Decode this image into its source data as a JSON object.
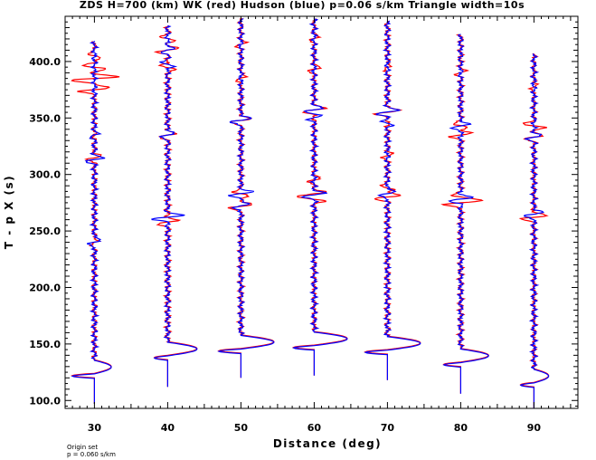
{
  "chart_data": {
    "type": "line",
    "title": "ZDS H=700 (km) WK (red) Hudson (blue) p=0.06 s/km Triangle width=10s",
    "xlabel": "Distance (deg)",
    "ylabel": "T - p X (s)",
    "xlim": [
      26,
      96
    ],
    "ylim": [
      93,
      440
    ],
    "xticks": [
      {
        "v": 30,
        "label": "30"
      },
      {
        "v": 40,
        "label": "40"
      },
      {
        "v": 50,
        "label": "50"
      },
      {
        "v": 60,
        "label": "60"
      },
      {
        "v": 70,
        "label": "70"
      },
      {
        "v": 80,
        "label": "80"
      },
      {
        "v": 90,
        "label": "90"
      }
    ],
    "yticks": [
      {
        "v": 100,
        "label": "100.0"
      },
      {
        "v": 150,
        "label": "150.0"
      },
      {
        "v": 200,
        "label": "200.0"
      },
      {
        "v": 250,
        "label": "250.0"
      },
      {
        "v": 300,
        "label": "300.0"
      },
      {
        "v": 350,
        "label": "350.0"
      },
      {
        "v": 400,
        "label": "400.0"
      }
    ],
    "series": [
      {
        "name": "WK (red)",
        "color": "#ff0000"
      },
      {
        "name": "Hudson (blue)",
        "color": "#0000ff"
      }
    ],
    "traces": [
      {
        "distance": 30,
        "t_start": 97,
        "t_end": 418,
        "first_arrival": {
          "t": 124,
          "amp": [
            -3.0,
            -2.0
          ],
          "pos": [
            2.3,
            2.0
          ]
        },
        "red_wiggles": [
          [
            240,
            0.8
          ],
          [
            315,
            1.2
          ],
          [
            375,
            3.0
          ],
          [
            385,
            4.5
          ],
          [
            395,
            -2.0
          ],
          [
            405,
            -1.5
          ]
        ],
        "blue_wiggles": [
          [
            240,
            1.5
          ],
          [
            313,
            1.5
          ],
          [
            335,
            0.6
          ]
        ]
      },
      {
        "distance": 40,
        "t_start": 112,
        "t_end": 432,
        "first_arrival": {
          "t": 140,
          "amp": [
            -1.8,
            -1.8
          ],
          "pos": [
            4.0,
            3.5
          ]
        },
        "red_wiggles": [
          [
            258,
            1.8
          ],
          [
            335,
            1.5
          ],
          [
            395,
            -1.5
          ],
          [
            410,
            1.8
          ],
          [
            420,
            -1.2
          ]
        ],
        "blue_wiggles": [
          [
            262,
            2.8
          ],
          [
            335,
            1.5
          ],
          [
            397,
            -1.2
          ],
          [
            410,
            1.0
          ]
        ]
      },
      {
        "distance": 50,
        "t_start": 120,
        "t_end": 438,
        "first_arrival": {
          "t": 146,
          "amp": [
            -3.0,
            -3.0
          ],
          "pos": [
            4.5,
            4.0
          ]
        },
        "red_wiggles": [
          [
            272,
            2.5
          ],
          [
            283,
            -1.8
          ],
          [
            348,
            2.0
          ],
          [
            385,
            1.2
          ],
          [
            415,
            0.8
          ]
        ],
        "blue_wiggles": [
          [
            272,
            1.8
          ],
          [
            283,
            2.0
          ],
          [
            348,
            2.3
          ]
        ]
      },
      {
        "distance": 60,
        "t_start": 122,
        "t_end": 438,
        "first_arrival": {
          "t": 149,
          "amp": [
            -2.8,
            -2.8
          ],
          "pos": [
            4.5,
            4.0
          ]
        },
        "red_wiggles": [
          [
            278,
            -1.8
          ],
          [
            283,
            2.0
          ],
          [
            295,
            1.0
          ],
          [
            357,
            2.2
          ],
          [
            393,
            1.0
          ],
          [
            420,
            0.8
          ]
        ],
        "blue_wiggles": [
          [
            282,
            2.0
          ],
          [
            357,
            1.5
          ],
          [
            350,
            1.0
          ]
        ]
      },
      {
        "distance": 70,
        "t_start": 118,
        "t_end": 436,
        "first_arrival": {
          "t": 145,
          "amp": [
            -3.0,
            -3.0
          ],
          "pos": [
            4.5,
            4.0
          ]
        },
        "red_wiggles": [
          [
            280,
            2.3
          ],
          [
            288,
            -1.5
          ],
          [
            317,
            1.0
          ],
          [
            355,
            2.5
          ],
          [
            395,
            0.8
          ]
        ],
        "blue_wiggles": [
          [
            283,
            1.8
          ],
          [
            355,
            2.0
          ],
          [
            345,
            -0.8
          ]
        ]
      },
      {
        "distance": 80,
        "t_start": 106,
        "t_end": 424,
        "first_arrival": {
          "t": 134,
          "amp": [
            -2.3,
            -2.3
          ],
          "pos": [
            3.8,
            3.5
          ]
        },
        "red_wiggles": [
          [
            275,
            3.5
          ],
          [
            280,
            -1.8
          ],
          [
            335,
            1.8
          ],
          [
            343,
            -1.5
          ],
          [
            390,
            0.8
          ]
        ],
        "blue_wiggles": [
          [
            278,
            2.0
          ],
          [
            343,
            1.8
          ]
        ]
      },
      {
        "distance": 90,
        "t_start": 93,
        "t_end": 407,
        "first_arrival": {
          "t": 116,
          "amp": [
            -1.8,
            -1.8
          ],
          "pos": [
            2.0,
            1.8
          ]
        },
        "red_wiggles": [
          [
            262,
            2.5
          ],
          [
            333,
            1.5
          ],
          [
            343,
            -2.0
          ],
          [
            378,
            0.8
          ]
        ],
        "blue_wiggles": [
          [
            265,
            2.0
          ],
          [
            333,
            1.2
          ]
        ]
      }
    ],
    "grid": false,
    "legend": "in title"
  },
  "footer": {
    "line1": "Origin set",
    "line2": "p = 0.060 s/km"
  }
}
